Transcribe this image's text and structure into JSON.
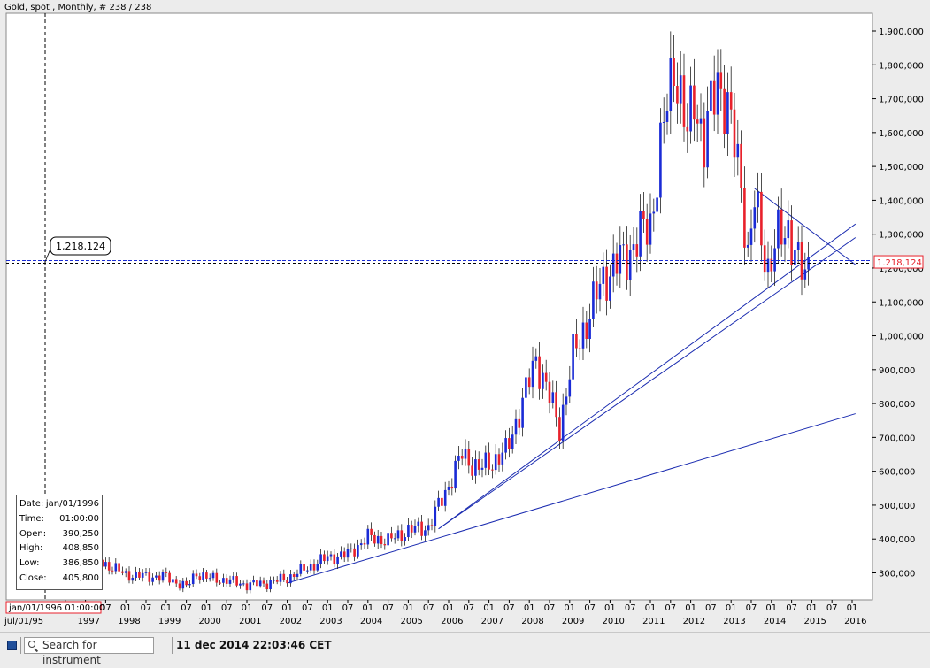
{
  "header": {
    "title": "Gold, spot , Monthly, # 238 / 238"
  },
  "chart_data": {
    "type": "candlestick",
    "title": "Gold, spot , Monthly, # 238 / 238",
    "ylim": [
      240000,
      1930000
    ],
    "y_ticks": [
      300000,
      400000,
      500000,
      600000,
      700000,
      800000,
      900000,
      1000000,
      1100000,
      1200000,
      1300000,
      1400000,
      1500000,
      1600000,
      1700000,
      1800000,
      1900000
    ],
    "y_tick_labels": [
      "300,000",
      "400,000",
      "500,000",
      "600,000",
      "700,000",
      "800,000",
      "900,000",
      "1,000,000",
      "1,100,000",
      "1,200,000",
      "1,300,000",
      "1,400,000",
      "1,500,000",
      "1,600,000",
      "1,700,000",
      "1,800,000",
      "1,900,000"
    ],
    "x_tick_labels_top": [
      "07",
      "01",
      "07",
      "01",
      "07",
      "01",
      "07",
      "01",
      "07",
      "01",
      "07",
      "01",
      "07",
      "01",
      "07",
      "01",
      "07",
      "01",
      "07",
      "01",
      "07",
      "01",
      "07",
      "01",
      "07",
      "01",
      "07",
      "01",
      "07",
      "01",
      "07",
      "01",
      "07",
      "01",
      "07",
      "01",
      "07",
      "01",
      "07",
      "01"
    ],
    "year_labels": [
      "1997",
      "1998",
      "1999",
      "2000",
      "2001",
      "2002",
      "2003",
      "2004",
      "2005",
      "2006",
      "2007",
      "2008",
      "2009",
      "2010",
      "2011",
      "2012",
      "2013",
      "2014",
      "2015",
      "2016"
    ],
    "first_x_label": "jul/01/95",
    "crosshair_date_label": "jan/01/1996 01:00:00",
    "current_price_label": "1.218,124",
    "cursor_price_label": "1,218,124",
    "colors": {
      "up": "#1a2bd6",
      "down": "#e8212b",
      "trendline": "#1a2bb0",
      "background": "#ffffff"
    },
    "anchors": [
      [
        "1995-07",
        385000
      ],
      [
        "1996-02",
        400000
      ],
      [
        "1996-07",
        385000
      ],
      [
        "1997-01",
        355000
      ],
      [
        "1997-07",
        325000
      ],
      [
        "1998-01",
        295000
      ],
      [
        "1998-07",
        290000
      ],
      [
        "1999-01",
        288000
      ],
      [
        "1999-07",
        258000
      ],
      [
        "1999-10",
        300000
      ],
      [
        "2000-01",
        285000
      ],
      [
        "2000-07",
        278000
      ],
      [
        "2001-01",
        265000
      ],
      [
        "2001-07",
        270000
      ],
      [
        "2002-01",
        285000
      ],
      [
        "2002-07",
        315000
      ],
      [
        "2003-01",
        345000
      ],
      [
        "2003-07",
        355000
      ],
      [
        "2004-01",
        405000
      ],
      [
        "2004-07",
        395000
      ],
      [
        "2005-01",
        425000
      ],
      [
        "2005-07",
        435000
      ],
      [
        "2006-01",
        560000
      ],
      [
        "2006-05",
        650000
      ],
      [
        "2006-10",
        605000
      ],
      [
        "2007-06",
        655000
      ],
      [
        "2007-12",
        835000
      ],
      [
        "2008-03",
        935000
      ],
      [
        "2008-10",
        730000
      ],
      [
        "2009-02",
        940000
      ],
      [
        "2009-11",
        1170000
      ],
      [
        "2010-06",
        1240000
      ],
      [
        "2011-01",
        1335000
      ],
      [
        "2011-08",
        1820000
      ],
      [
        "2011-12",
        1580000
      ],
      [
        "2012-02",
        1720000
      ],
      [
        "2012-05",
        1560000
      ],
      [
        "2012-09",
        1770000
      ],
      [
        "2012-12",
        1660000
      ],
      [
        "2013-04",
        1460000
      ],
      [
        "2013-06",
        1230000
      ],
      [
        "2013-08",
        1390000
      ],
      [
        "2013-12",
        1200000
      ],
      [
        "2014-03",
        1285000
      ],
      [
        "2014-06",
        1320000
      ],
      [
        "2014-09",
        1210000
      ],
      [
        "2014-11",
        1170000
      ],
      [
        "2014-12",
        1218000
      ]
    ],
    "trendlines": [
      {
        "from": [
          "2002-01",
          270000
        ],
        "to": [
          "2016-02",
          770000
        ]
      },
      {
        "from": [
          "2005-10",
          430000
        ],
        "to": [
          "2016-02",
          1330000
        ]
      },
      {
        "from": [
          "2005-10",
          430000
        ],
        "to": [
          "2016-02",
          1290000
        ]
      },
      {
        "from": [
          "2013-08",
          1435000
        ],
        "to": [
          "2016-02",
          1210000
        ]
      }
    ]
  },
  "info_box": {
    "rows": [
      {
        "label": "Date:",
        "value": "jan/01/1996"
      },
      {
        "label": "Time:",
        "value": "01:00:00"
      },
      {
        "label": "Open:",
        "value": "390,250"
      },
      {
        "label": "High:",
        "value": "408,850"
      },
      {
        "label": "Low:",
        "value": "386,850"
      },
      {
        "label": "Close:",
        "value": "405,800"
      }
    ]
  },
  "bottom_bar": {
    "search_placeholder": "Search for instrument",
    "timestamp": "11 dec 2014 22:03:46 CET"
  }
}
